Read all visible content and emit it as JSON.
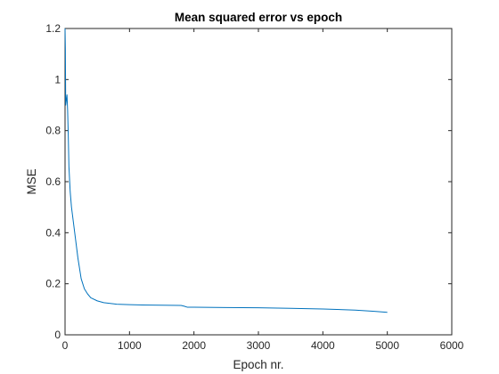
{
  "chart_data": {
    "type": "line",
    "title": "Mean squared error vs epoch",
    "xlabel": "Epoch nr.",
    "ylabel": "MSE",
    "xlim": [
      0,
      6000
    ],
    "ylim": [
      0,
      1.2
    ],
    "xticks": [
      0,
      1000,
      2000,
      3000,
      4000,
      5000,
      6000
    ],
    "yticks": [
      0,
      0.2,
      0.4,
      0.6,
      0.8,
      1,
      1.2
    ],
    "xtick_labels": [
      "0",
      "1000",
      "2000",
      "3000",
      "4000",
      "5000",
      "6000"
    ],
    "ytick_labels": [
      "0",
      "0.2",
      "0.4",
      "0.6",
      "0.8",
      "1",
      "1.2"
    ],
    "grid": false,
    "legend": false,
    "series": [
      {
        "color": "#0072BD",
        "x": [
          0,
          5,
          10,
          20,
          30,
          40,
          50,
          60,
          80,
          100,
          150,
          200,
          250,
          300,
          350,
          400,
          500,
          600,
          800,
          1000,
          1200,
          1500,
          1800,
          1850,
          1900,
          2000,
          2500,
          3000,
          3500,
          4000,
          4500,
          4800,
          5000
        ],
        "y": [
          1.2,
          1.12,
          0.9,
          0.92,
          0.94,
          0.88,
          0.78,
          0.66,
          0.56,
          0.5,
          0.4,
          0.3,
          0.22,
          0.18,
          0.16,
          0.145,
          0.133,
          0.126,
          0.12,
          0.118,
          0.117,
          0.116,
          0.115,
          0.112,
          0.108,
          0.108,
          0.107,
          0.106,
          0.104,
          0.101,
          0.097,
          0.092,
          0.088
        ]
      }
    ]
  }
}
